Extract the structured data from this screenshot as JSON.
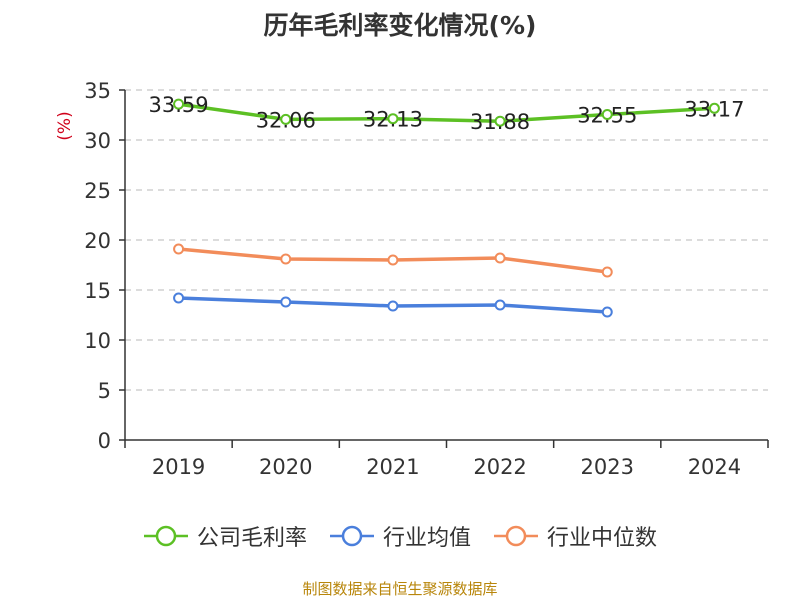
{
  "chart_data": {
    "type": "line",
    "title": "历年毛利率变化情况(%)",
    "ylabel": "(%)",
    "xlabel": "",
    "categories": [
      "2019",
      "2020",
      "2021",
      "2022",
      "2023",
      "2024"
    ],
    "ylim": [
      0,
      35
    ],
    "yticks": [
      0,
      5,
      10,
      15,
      20,
      25,
      30,
      35
    ],
    "grid": true,
    "legend_position": "bottom",
    "series": [
      {
        "name": "公司毛利率",
        "color": "#5cc024",
        "values": [
          33.59,
          32.06,
          32.13,
          31.88,
          32.55,
          33.17
        ],
        "labels": [
          "33.59",
          "32.06",
          "32.13",
          "31.88",
          "32.55",
          "33.17"
        ]
      },
      {
        "name": "行业均值",
        "color": "#4a7fdc",
        "values": [
          14.2,
          13.8,
          13.4,
          13.5,
          12.8,
          null
        ],
        "labels": []
      },
      {
        "name": "行业中位数",
        "color": "#f28c5a",
        "values": [
          19.1,
          18.1,
          18.0,
          18.2,
          16.8,
          null
        ],
        "labels": []
      }
    ]
  },
  "source": "制图数据来自恒生聚源数据库"
}
